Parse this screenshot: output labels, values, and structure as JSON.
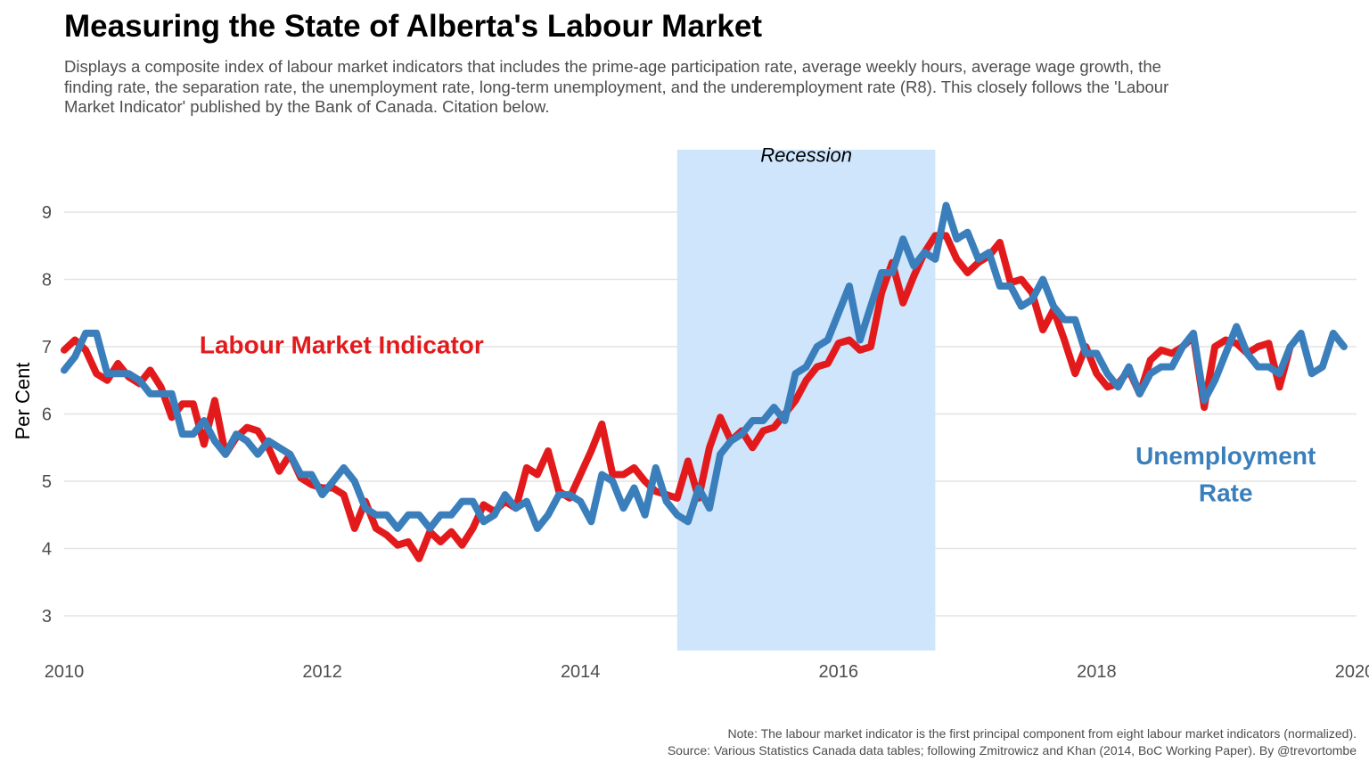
{
  "title": "Measuring the State of Alberta's Labour Market",
  "subtitle": "Displays a composite index of labour market indicators that includes the prime-age participation rate, average weekly hours, average wage growth, the finding rate, the separation rate, the unemployment rate, long-term unemployment, and the underemployment rate (R8). This closely follows the 'Labour Market Indicator' published by the Bank of Canada. Citation below.",
  "caption": {
    "line1": "Note: The labour market indicator is the first principal component from eight labour market indicators (normalized).",
    "line2": "Source: Various Statistics Canada data tables; following Zmitrowicz and Khan (2014, BoC Working Paper). By @trevortombe"
  },
  "chart_data": {
    "type": "line",
    "ylabel": "Per Cent",
    "xlim": [
      2010,
      2020
    ],
    "ylim": [
      2.5,
      9.9
    ],
    "x_ticks": [
      2010,
      2012,
      2014,
      2016,
      2018,
      2020
    ],
    "x_tick_labels": [
      "2010",
      "2012",
      "2014",
      "2016",
      "2018",
      "2020"
    ],
    "y_ticks": [
      3,
      4,
      5,
      6,
      7,
      8,
      9
    ],
    "y_tick_labels": [
      "3",
      "4",
      "5",
      "6",
      "7",
      "8",
      "9"
    ],
    "grid": "horizontal",
    "shaded_region": {
      "label": "Recession",
      "x_start": 2014.75,
      "x_end": 2016.75,
      "color": "#cfe5fb"
    },
    "series": [
      {
        "name": "Labour Market Indicator",
        "color": "#e31a1c",
        "x_start": 2010.0,
        "x_step": 0.0833333,
        "values": [
          6.95,
          7.1,
          6.95,
          6.6,
          6.5,
          6.75,
          6.55,
          6.45,
          6.65,
          6.4,
          5.95,
          6.15,
          6.15,
          5.55,
          6.2,
          5.4,
          5.65,
          5.8,
          5.75,
          5.5,
          5.15,
          5.4,
          5.05,
          4.95,
          4.9,
          4.9,
          4.8,
          4.3,
          4.7,
          4.3,
          4.2,
          4.05,
          4.1,
          3.85,
          4.25,
          4.1,
          4.25,
          4.05,
          4.3,
          4.65,
          4.55,
          4.7,
          4.6,
          5.2,
          5.1,
          5.45,
          4.85,
          4.75,
          5.1,
          5.45,
          5.85,
          5.1,
          5.1,
          5.2,
          5.0,
          4.85,
          4.8,
          4.75,
          5.3,
          4.75,
          5.5,
          5.95,
          5.6,
          5.75,
          5.5,
          5.75,
          5.8,
          6.0,
          6.2,
          6.5,
          6.7,
          6.75,
          7.05,
          7.1,
          6.95,
          7.0,
          7.8,
          8.25,
          7.65,
          8.05,
          8.4,
          8.65,
          8.65,
          8.3,
          8.1,
          8.25,
          8.35,
          8.55,
          7.95,
          8.0,
          7.8,
          7.25,
          7.55,
          7.1,
          6.6,
          7.0,
          6.6,
          6.4,
          6.45,
          6.65,
          6.3,
          6.8,
          6.95,
          6.9,
          7.0,
          7.15,
          6.1,
          7.0,
          7.1,
          7.05,
          6.9,
          7.0,
          7.05,
          6.4,
          7.0
        ]
      },
      {
        "name": "Unemployment Rate",
        "color": "#3a7fbb",
        "x_start": 2010.0,
        "x_step": 0.0833333,
        "values": [
          6.65,
          6.85,
          7.2,
          7.2,
          6.6,
          6.6,
          6.6,
          6.5,
          6.3,
          6.3,
          6.3,
          5.7,
          5.7,
          5.9,
          5.6,
          5.4,
          5.7,
          5.6,
          5.4,
          5.6,
          5.5,
          5.4,
          5.1,
          5.1,
          4.8,
          5.0,
          5.2,
          5.0,
          4.6,
          4.5,
          4.5,
          4.3,
          4.5,
          4.5,
          4.3,
          4.5,
          4.5,
          4.7,
          4.7,
          4.4,
          4.5,
          4.8,
          4.6,
          4.7,
          4.3,
          4.5,
          4.8,
          4.8,
          4.7,
          4.4,
          5.1,
          5.0,
          4.6,
          4.9,
          4.5,
          5.2,
          4.7,
          4.5,
          4.4,
          4.9,
          4.6,
          5.4,
          5.6,
          5.7,
          5.9,
          5.9,
          6.1,
          5.9,
          6.6,
          6.7,
          7.0,
          7.1,
          7.5,
          7.9,
          7.1,
          7.6,
          8.1,
          8.1,
          8.6,
          8.2,
          8.4,
          8.3,
          9.1,
          8.6,
          8.7,
          8.3,
          8.4,
          7.9,
          7.9,
          7.6,
          7.7,
          8.0,
          7.6,
          7.4,
          7.4,
          6.9,
          6.9,
          6.6,
          6.4,
          6.7,
          6.3,
          6.6,
          6.7,
          6.7,
          7.0,
          7.2,
          6.2,
          6.5,
          6.9,
          7.3,
          6.9,
          6.7,
          6.7,
          6.6,
          7.0,
          7.2,
          6.6,
          6.7,
          7.2,
          7.0
        ]
      }
    ],
    "annotations": [
      {
        "text": "Recession",
        "x": 2015.75,
        "y": 9.75
      },
      {
        "text": "Labour Market Indicator",
        "x": 2012.15,
        "y": 6.9
      },
      {
        "text": "Unemployment",
        "x": 2019.0,
        "y": 5.25
      },
      {
        "text": "Rate",
        "x": 2019.0,
        "y": 4.7
      }
    ]
  }
}
